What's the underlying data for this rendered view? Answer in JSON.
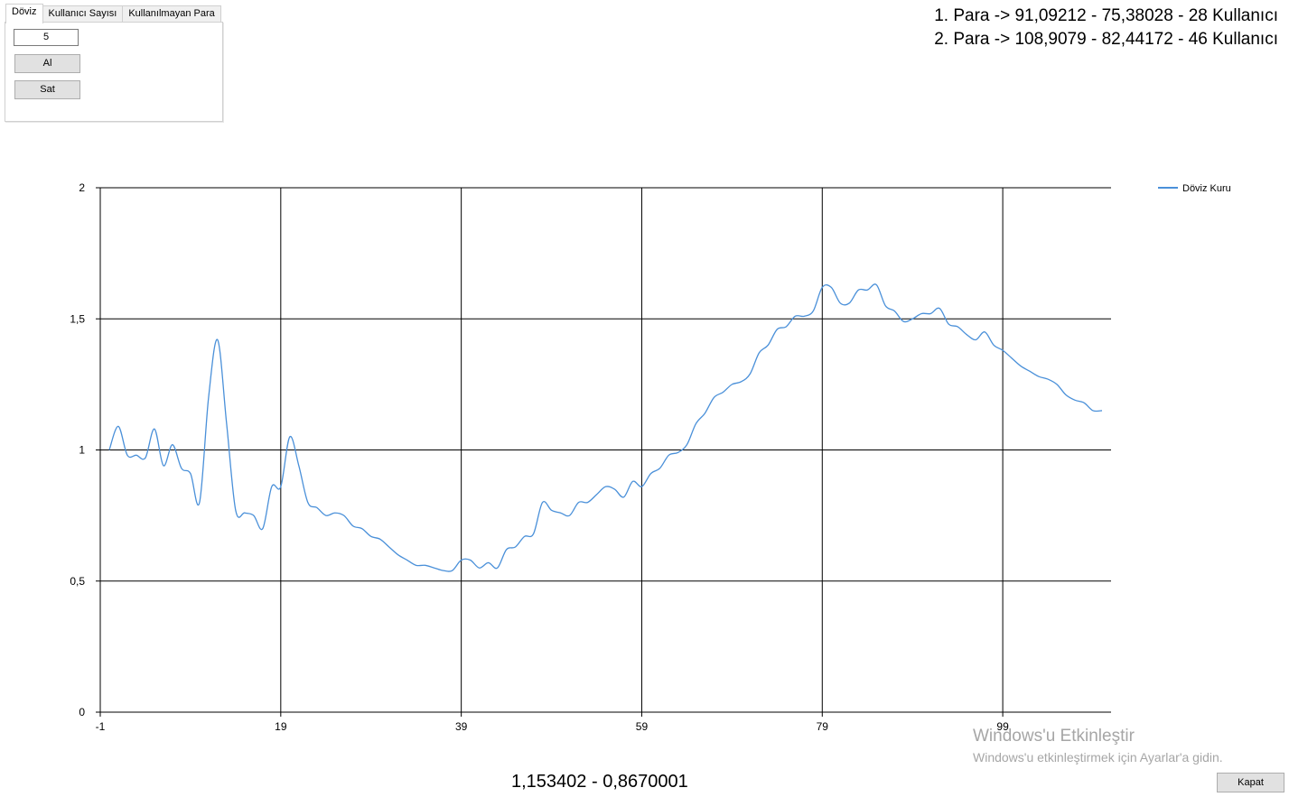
{
  "tabs": [
    {
      "label": "Döviz",
      "active": true
    },
    {
      "label": "Kullanıcı Sayısı",
      "active": false
    },
    {
      "label": "Kullanılmayan Para",
      "active": false
    }
  ],
  "controls": {
    "quantity_value": "5",
    "buy_label": "Al",
    "sell_label": "Sat"
  },
  "info_lines": [
    "1. Para -> 91,09212 - 75,38028 - 28 Kullanıcı",
    "2. Para -> 108,9079 - 82,44172 - 46 Kullanıcı"
  ],
  "bottom_readout": "1,153402 - 0,8670001",
  "watermark": {
    "title": "Windows'u Etkinleştir",
    "subtitle": "Windows'u etkinleştirmek için Ayarlar'a gidin."
  },
  "close_label": "Kapat",
  "chart_data": {
    "type": "line",
    "title": "",
    "xlabel": "",
    "ylabel": "",
    "xlim": [
      -1,
      111
    ],
    "ylim": [
      0,
      2
    ],
    "x_ticks": [
      -1,
      19,
      39,
      59,
      79,
      99
    ],
    "x_tick_labels": [
      "-1",
      "19",
      "39",
      "59",
      "79",
      "99"
    ],
    "y_ticks": [
      0,
      0.5,
      1,
      1.5,
      2
    ],
    "y_tick_labels": [
      "0",
      "0,5",
      "1",
      "1,5",
      "2"
    ],
    "grid": true,
    "legend_position": "top-right",
    "series": [
      {
        "name": "Döviz Kuru",
        "color": "#4a90d9",
        "x": [
          0,
          1,
          2,
          3,
          4,
          5,
          6,
          7,
          8,
          9,
          10,
          11,
          12,
          13,
          14,
          15,
          16,
          17,
          18,
          19,
          20,
          21,
          22,
          23,
          24,
          25,
          26,
          27,
          28,
          29,
          30,
          31,
          32,
          33,
          34,
          35,
          36,
          37,
          38,
          39,
          40,
          41,
          42,
          43,
          44,
          45,
          46,
          47,
          48,
          49,
          50,
          51,
          52,
          53,
          54,
          55,
          56,
          57,
          58,
          59,
          60,
          61,
          62,
          63,
          64,
          65,
          66,
          67,
          68,
          69,
          70,
          71,
          72,
          73,
          74,
          75,
          76,
          77,
          78,
          79,
          80,
          81,
          82,
          83,
          84,
          85,
          86,
          87,
          88,
          89,
          90,
          91,
          92,
          93,
          94,
          95,
          96,
          97,
          98,
          99,
          100,
          101,
          102,
          103,
          104,
          105,
          106,
          107,
          108,
          109,
          110
        ],
        "values": [
          1.0,
          1.09,
          0.98,
          0.98,
          0.97,
          1.08,
          0.94,
          1.02,
          0.93,
          0.91,
          0.8,
          1.2,
          1.42,
          1.1,
          0.77,
          0.76,
          0.75,
          0.7,
          0.86,
          0.86,
          1.05,
          0.94,
          0.8,
          0.78,
          0.75,
          0.76,
          0.75,
          0.71,
          0.7,
          0.67,
          0.66,
          0.63,
          0.6,
          0.58,
          0.56,
          0.56,
          0.55,
          0.54,
          0.54,
          0.58,
          0.58,
          0.55,
          0.57,
          0.55,
          0.62,
          0.63,
          0.67,
          0.68,
          0.8,
          0.77,
          0.76,
          0.75,
          0.8,
          0.8,
          0.83,
          0.86,
          0.85,
          0.82,
          0.88,
          0.86,
          0.91,
          0.93,
          0.98,
          0.99,
          1.02,
          1.1,
          1.14,
          1.2,
          1.22,
          1.25,
          1.26,
          1.29,
          1.37,
          1.4,
          1.46,
          1.47,
          1.51,
          1.51,
          1.53,
          1.62,
          1.62,
          1.56,
          1.56,
          1.61,
          1.61,
          1.63,
          1.55,
          1.53,
          1.49,
          1.5,
          1.52,
          1.52,
          1.54,
          1.48,
          1.47,
          1.44,
          1.42,
          1.45,
          1.4,
          1.38,
          1.35,
          1.32,
          1.3,
          1.28,
          1.27,
          1.25,
          1.21,
          1.19,
          1.18,
          1.15,
          1.15
        ]
      }
    ]
  }
}
